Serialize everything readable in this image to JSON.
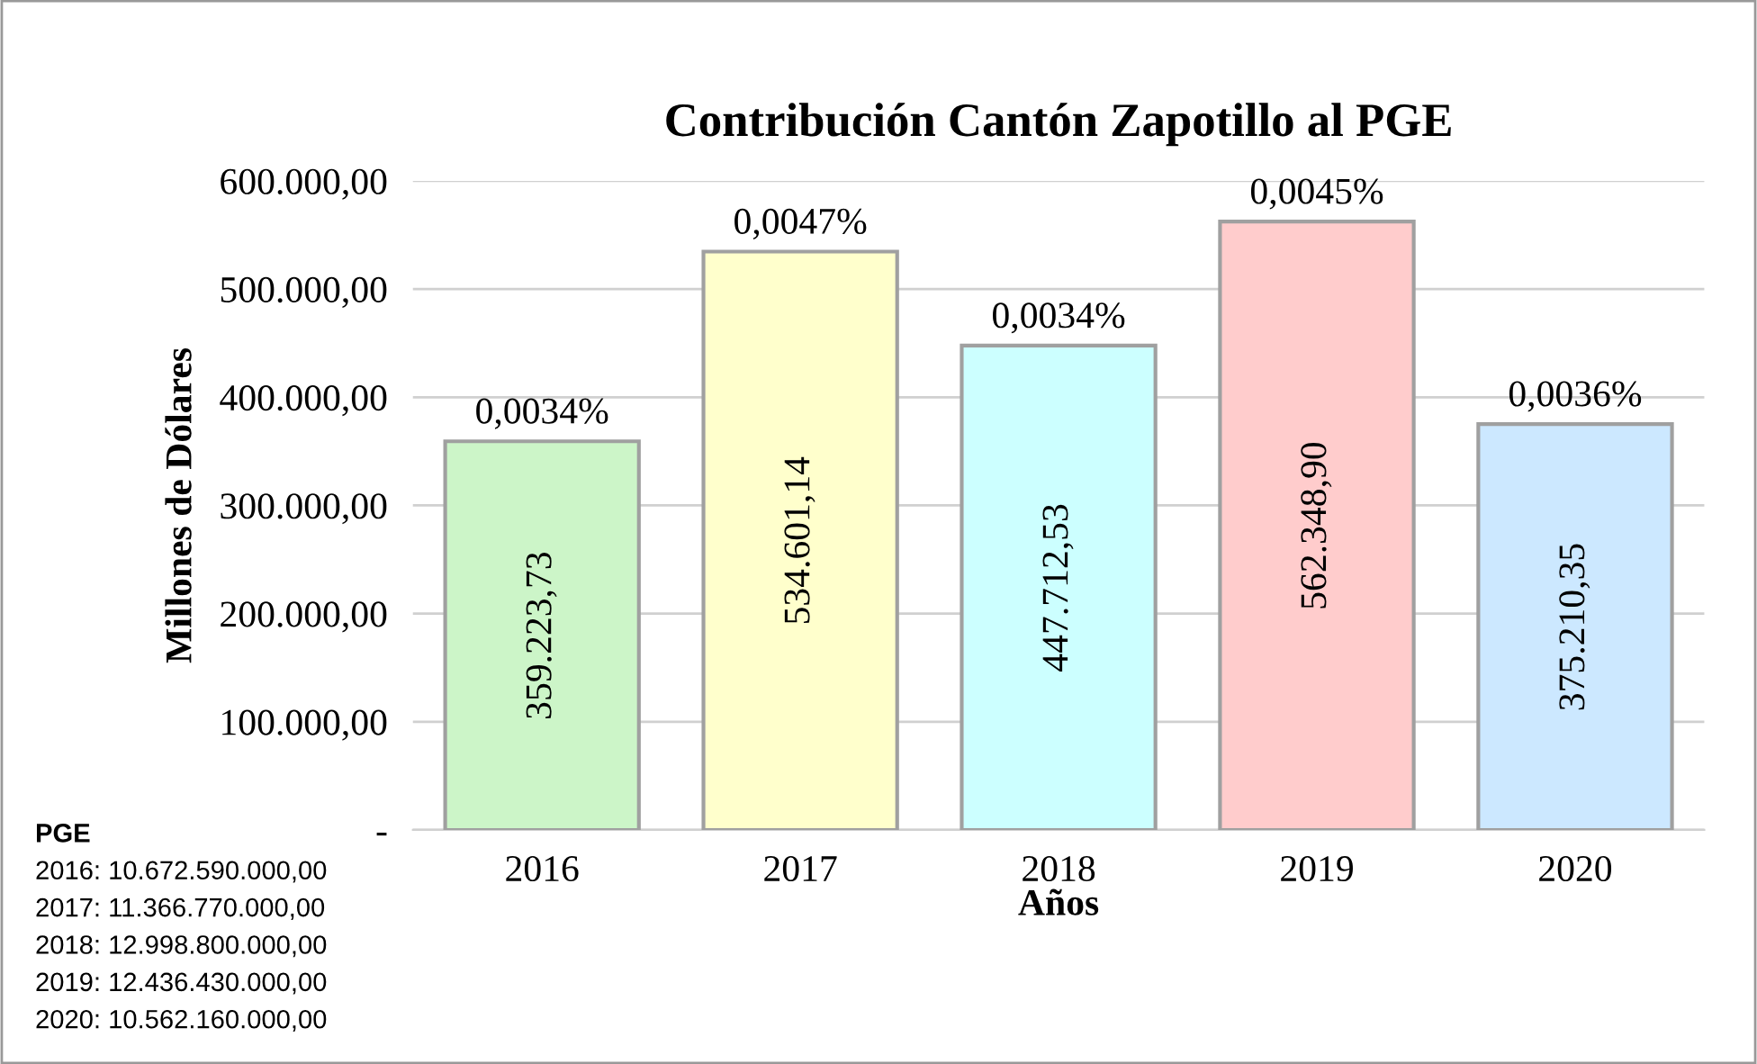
{
  "chart_data": {
    "type": "bar",
    "title": "Contribución Cantón Zapotillo al PGE",
    "xlabel": "Años",
    "ylabel": "Millones de Dólares",
    "categories": [
      "2016",
      "2017",
      "2018",
      "2019",
      "2020"
    ],
    "values": [
      359223.73,
      534601.14,
      447712.53,
      562348.9,
      375210.35
    ],
    "colors": [
      "#ccf5c8",
      "#ffffcc",
      "#ccffff",
      "#ffcccc",
      "#cce8ff"
    ],
    "value_labels": [
      "359.223,73",
      "534.601,14",
      "447.712,53",
      "562.348,90",
      "375.210,35"
    ],
    "ylim": [
      0,
      600000
    ],
    "yticks": [
      {
        "value": 0,
        "label": "-"
      },
      {
        "value": 100000,
        "label": "100.000,00"
      },
      {
        "value": 200000,
        "label": "200.000,00"
      },
      {
        "value": 300000,
        "label": "300.000,00"
      },
      {
        "value": 400000,
        "label": "400.000,00"
      },
      {
        "value": 500000,
        "label": "500.000,00"
      },
      {
        "value": 600000,
        "label": "600.000,00"
      }
    ],
    "grid": "y",
    "annotations": [
      {
        "text": "0,0034%",
        "x": "2016",
        "y": 359223.73
      },
      {
        "text": "0,0047%",
        "x": "2017",
        "y": 534601.14
      },
      {
        "text": "0,0034%",
        "x": "2018",
        "y": 447712.53
      },
      {
        "text": "0,0045%",
        "x": "2019",
        "y": 562348.9
      },
      {
        "text": "0,0036%",
        "x": "2020",
        "y": 375210.35
      },
      "PGE",
      "2016: 10.672.590.000,00",
      "2017: 11.366.770.000,00",
      "2018: 12.998.800.000,00",
      "2019: 12.436.430.000,00",
      "2020: 10.562.160.000,00"
    ]
  }
}
